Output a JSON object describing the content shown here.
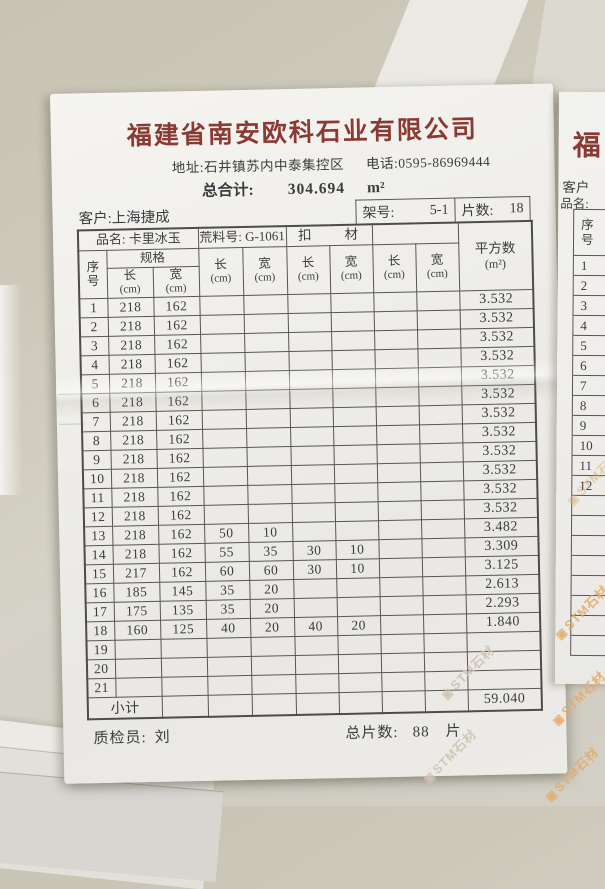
{
  "header": {
    "company_name": "福建省南安欧科石业有限公司",
    "address": "地址:石井镇苏内中泰集控区",
    "phone": "电话:0595-86969444",
    "grand_total_label": "总合计:",
    "grand_total_value": "304.694",
    "grand_total_unit": "m²"
  },
  "customer_row": {
    "customer_label": "客户:",
    "customer_name": "上海捷成",
    "rack_label": "架号:",
    "rack_value": "5-1",
    "pieces_label": "片数:",
    "pieces_value": "18"
  },
  "table": {
    "product_label": "品名:",
    "product_name": "卡里冰玉",
    "block_label": "荒料号:",
    "block_no": "G-1061",
    "deduction_header": "扣　　材",
    "area_header": "平方数",
    "area_unit": "(m²)",
    "seq_char1": "序",
    "seq_char2": "号",
    "spec_header": "规格",
    "len_label": "长",
    "wid_label": "宽",
    "unit_cm": "(cm)",
    "rows": [
      {
        "seq": "1",
        "dims": [
          "218",
          "162",
          "",
          "",
          "",
          "",
          "",
          ""
        ],
        "area": "3.532"
      },
      {
        "seq": "2",
        "dims": [
          "218",
          "162",
          "",
          "",
          "",
          "",
          "",
          ""
        ],
        "area": "3.532"
      },
      {
        "seq": "3",
        "dims": [
          "218",
          "162",
          "",
          "",
          "",
          "",
          "",
          ""
        ],
        "area": "3.532"
      },
      {
        "seq": "4",
        "dims": [
          "218",
          "162",
          "",
          "",
          "",
          "",
          "",
          ""
        ],
        "area": "3.532"
      },
      {
        "seq": "5",
        "dims": [
          "218",
          "162",
          "",
          "",
          "",
          "",
          "",
          ""
        ],
        "area": "3.532"
      },
      {
        "seq": "6",
        "dims": [
          "218",
          "162",
          "",
          "",
          "",
          "",
          "",
          ""
        ],
        "area": "3.532"
      },
      {
        "seq": "7",
        "dims": [
          "218",
          "162",
          "",
          "",
          "",
          "",
          "",
          ""
        ],
        "area": "3.532"
      },
      {
        "seq": "8",
        "dims": [
          "218",
          "162",
          "",
          "",
          "",
          "",
          "",
          ""
        ],
        "area": "3.532"
      },
      {
        "seq": "9",
        "dims": [
          "218",
          "162",
          "",
          "",
          "",
          "",
          "",
          ""
        ],
        "area": "3.532"
      },
      {
        "seq": "10",
        "dims": [
          "218",
          "162",
          "",
          "",
          "",
          "",
          "",
          ""
        ],
        "area": "3.532"
      },
      {
        "seq": "11",
        "dims": [
          "218",
          "162",
          "",
          "",
          "",
          "",
          "",
          ""
        ],
        "area": "3.532"
      },
      {
        "seq": "12",
        "dims": [
          "218",
          "162",
          "",
          "",
          "",
          "",
          "",
          ""
        ],
        "area": "3.532"
      },
      {
        "seq": "13",
        "dims": [
          "218",
          "162",
          "50",
          "10",
          "",
          "",
          "",
          ""
        ],
        "area": "3.482"
      },
      {
        "seq": "14",
        "dims": [
          "218",
          "162",
          "55",
          "35",
          "30",
          "10",
          "",
          ""
        ],
        "area": "3.309"
      },
      {
        "seq": "15",
        "dims": [
          "217",
          "162",
          "60",
          "60",
          "30",
          "10",
          "",
          ""
        ],
        "area": "3.125"
      },
      {
        "seq": "16",
        "dims": [
          "185",
          "145",
          "35",
          "20",
          "",
          "",
          "",
          ""
        ],
        "area": "2.613"
      },
      {
        "seq": "17",
        "dims": [
          "175",
          "135",
          "35",
          "20",
          "",
          "",
          "",
          ""
        ],
        "area": "2.293"
      },
      {
        "seq": "18",
        "dims": [
          "160",
          "125",
          "40",
          "20",
          "40",
          "20",
          "",
          ""
        ],
        "area": "1.840"
      },
      {
        "seq": "19",
        "dims": [
          "",
          "",
          "",
          "",
          "",
          "",
          "",
          ""
        ],
        "area": ""
      },
      {
        "seq": "20",
        "dims": [
          "",
          "",
          "",
          "",
          "",
          "",
          "",
          ""
        ],
        "area": ""
      },
      {
        "seq": "21",
        "dims": [
          "",
          "",
          "",
          "",
          "",
          "",
          "",
          ""
        ],
        "area": ""
      }
    ],
    "subtotal_label": "小计",
    "subtotal_value": "59.040"
  },
  "footer": {
    "inspector_label": "质检员:",
    "inspector_name": "刘",
    "total_pieces_label": "总片数:",
    "total_pieces_value": "88",
    "total_pieces_unit": "片"
  },
  "side_sheet": {
    "partial_company": "福",
    "customer_label": "客户",
    "product_label": "品名:",
    "seq_char1": "序",
    "seq_char2": "号",
    "rows": [
      "1",
      "2",
      "3",
      "4",
      "5",
      "6",
      "7",
      "8",
      "9",
      "10",
      "11",
      "12"
    ],
    "empty_rows": 8
  },
  "watermark": {
    "logo": "▣",
    "text": "STM石材"
  },
  "colors": {
    "company_red": "#8b3a33",
    "ink": "#3b3c40",
    "table_line": "#55504a",
    "paper": "#efeeea",
    "desk": "#cdc9bb",
    "watermark_warm": "#e2ac69"
  }
}
